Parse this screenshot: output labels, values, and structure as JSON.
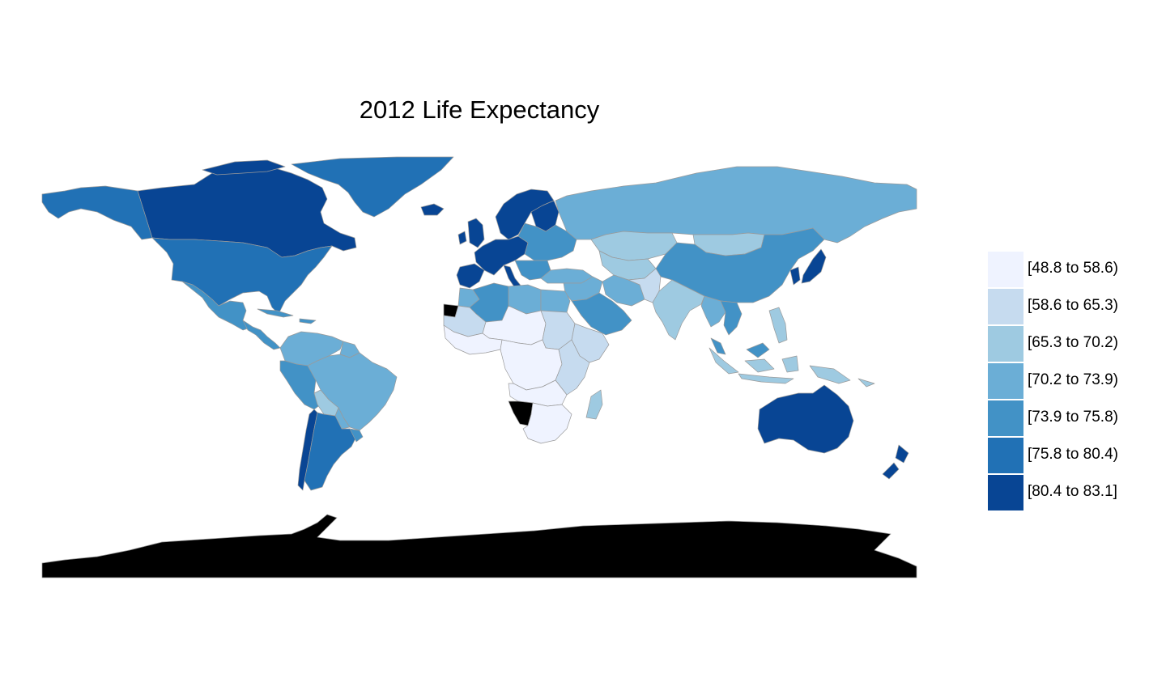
{
  "title": "2012 Life Expectancy",
  "legend": {
    "items": [
      {
        "label": "[48.8 to 58.6)",
        "color": "#eff3ff"
      },
      {
        "label": "[58.6 to 65.3)",
        "color": "#c6dbef"
      },
      {
        "label": "[65.3 to 70.2)",
        "color": "#9ecae1"
      },
      {
        "label": "[70.2 to 73.9)",
        "color": "#6baed6"
      },
      {
        "label": "[73.9 to 75.8)",
        "color": "#4292c6"
      },
      {
        "label": "[75.8 to 80.4)",
        "color": "#2171b5"
      },
      {
        "label": "[80.4 to 83.1]",
        "color": "#084594"
      }
    ]
  },
  "no_data_color": "#000000",
  "border_color": "#9a9a9a",
  "regions": [
    {
      "name": "greenland",
      "bin": 5
    },
    {
      "name": "canada",
      "bin": 6
    },
    {
      "name": "alaska",
      "bin": 5
    },
    {
      "name": "usa",
      "bin": 5
    },
    {
      "name": "mexico",
      "bin": 4
    },
    {
      "name": "central-america",
      "bin": 4
    },
    {
      "name": "caribbean",
      "bin": 4
    },
    {
      "name": "colombia-venezuela",
      "bin": 3
    },
    {
      "name": "guianas",
      "bin": 3
    },
    {
      "name": "ecuador-peru",
      "bin": 4
    },
    {
      "name": "brazil",
      "bin": 3
    },
    {
      "name": "bolivia",
      "bin": 2
    },
    {
      "name": "paraguay",
      "bin": 3
    },
    {
      "name": "chile",
      "bin": 6
    },
    {
      "name": "argentina",
      "bin": 5
    },
    {
      "name": "uruguay",
      "bin": 4
    },
    {
      "name": "iceland",
      "bin": 6
    },
    {
      "name": "scandinavia",
      "bin": 6
    },
    {
      "name": "finland",
      "bin": 6
    },
    {
      "name": "uk-ireland",
      "bin": 6
    },
    {
      "name": "western-europe",
      "bin": 6
    },
    {
      "name": "iberia",
      "bin": 6
    },
    {
      "name": "italy",
      "bin": 6
    },
    {
      "name": "eastern-europe",
      "bin": 4
    },
    {
      "name": "balkans",
      "bin": 4
    },
    {
      "name": "turkey",
      "bin": 3
    },
    {
      "name": "russia",
      "bin": 3
    },
    {
      "name": "kazakhstan",
      "bin": 2
    },
    {
      "name": "central-asia",
      "bin": 2
    },
    {
      "name": "mongolia",
      "bin": 2
    },
    {
      "name": "china",
      "bin": 4
    },
    {
      "name": "korea-japan",
      "bin": 6
    },
    {
      "name": "middle-east",
      "bin": 3
    },
    {
      "name": "arabia",
      "bin": 4
    },
    {
      "name": "iran",
      "bin": 3
    },
    {
      "name": "afghanistan-pakistan",
      "bin": 1
    },
    {
      "name": "india",
      "bin": 2
    },
    {
      "name": "southeast-asia",
      "bin": 3
    },
    {
      "name": "indochina",
      "bin": 4
    },
    {
      "name": "malaysia",
      "bin": 4
    },
    {
      "name": "indonesia",
      "bin": 2
    },
    {
      "name": "philippines",
      "bin": 2
    },
    {
      "name": "papua-new-guinea",
      "bin": 2
    },
    {
      "name": "australia",
      "bin": 6
    },
    {
      "name": "new-zealand",
      "bin": 6
    },
    {
      "name": "morocco",
      "bin": 3
    },
    {
      "name": "western-sahara",
      "bin": -1
    },
    {
      "name": "algeria",
      "bin": 4
    },
    {
      "name": "libya",
      "bin": 3
    },
    {
      "name": "egypt",
      "bin": 3
    },
    {
      "name": "mauritania-mali",
      "bin": 1
    },
    {
      "name": "sahel",
      "bin": 0
    },
    {
      "name": "sudan",
      "bin": 1
    },
    {
      "name": "horn-of-africa",
      "bin": 1
    },
    {
      "name": "west-africa",
      "bin": 0
    },
    {
      "name": "central-africa",
      "bin": 0
    },
    {
      "name": "east-africa",
      "bin": 1
    },
    {
      "name": "angola-zambia",
      "bin": 0
    },
    {
      "name": "namibia",
      "bin": -1
    },
    {
      "name": "southern-africa",
      "bin": 0
    },
    {
      "name": "madagascar",
      "bin": 2
    },
    {
      "name": "antarctica",
      "bin": -1
    }
  ]
}
